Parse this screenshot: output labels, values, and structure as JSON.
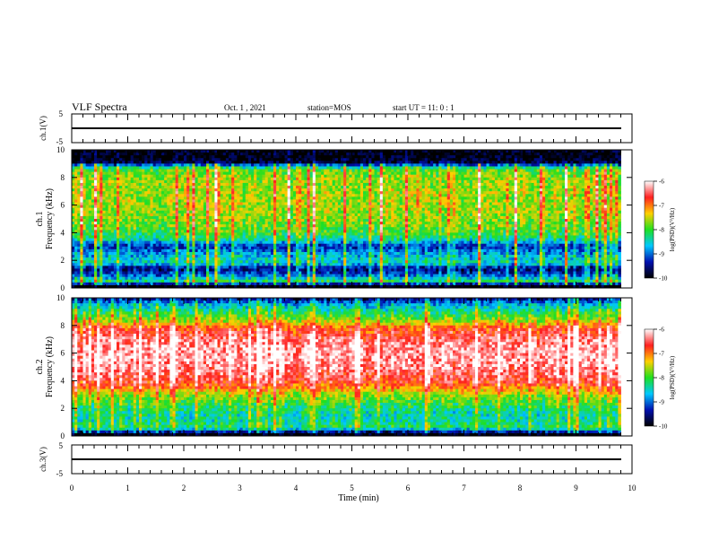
{
  "header": {
    "title": "VLF Spectra",
    "date": "Oct. 1 , 2021",
    "station": "station=MOS",
    "start": "start UT =  11: 0  : 1"
  },
  "colorbar": {
    "label": "log(PSD)(V²/Hz)",
    "ticks": [
      "-6",
      "-7",
      "-8",
      "-9",
      "-10"
    ],
    "stops": [
      "#ffffff",
      "#ff2020",
      "#ffd000",
      "#20e020",
      "#00c8ff",
      "#0010b0",
      "#000000"
    ]
  },
  "chart_data": [
    {
      "type": "line",
      "name": "ch1-waveform",
      "ylabel": "ch.1(V)",
      "xlim": [
        0,
        10
      ],
      "ylim": [
        -5,
        5
      ],
      "yticks": [
        "5",
        "-5"
      ],
      "x": [
        0,
        9.8
      ],
      "y": [
        0,
        0
      ]
    },
    {
      "type": "heatmap",
      "name": "ch1-spectrogram",
      "ylabel": "ch.1\nFrequency (kHz)",
      "ylabel_lines": [
        "ch.1",
        "Frequency (kHz)"
      ],
      "xlim": [
        0,
        10
      ],
      "data_xmax": 9.8,
      "ylim": [
        0,
        10
      ],
      "yticks": [
        "0",
        "2",
        "4",
        "6",
        "8",
        "10"
      ],
      "clim": [
        -10,
        -6
      ],
      "frequency_kHz": [
        0.2,
        0.5,
        0.9,
        1.4,
        1.8,
        2.4,
        3.0,
        3.6,
        4.2,
        5.0,
        6.0,
        7.0,
        8.0,
        8.6,
        9.0,
        9.4,
        9.9
      ],
      "mean_log_psd": [
        -10,
        -8.4,
        -9.2,
        -9.8,
        -8.6,
        -8.9,
        -9.5,
        -8.4,
        -8.1,
        -7.9,
        -7.8,
        -7.8,
        -7.9,
        -8.1,
        -9.7,
        -10,
        -10
      ]
    },
    {
      "type": "heatmap",
      "name": "ch2-spectrogram",
      "ylabel": "ch.2\nFrequency (kHz)",
      "ylabel_lines": [
        "ch.2",
        "Frequency (kHz)"
      ],
      "xlim": [
        0,
        10
      ],
      "data_xmax": 9.8,
      "ylim": [
        0,
        10
      ],
      "yticks": [
        "0",
        "2",
        "4",
        "6",
        "8",
        "10"
      ],
      "clim": [
        -10,
        -6
      ],
      "frequency_kHz": [
        0.2,
        0.6,
        1.2,
        1.8,
        2.4,
        3.0,
        3.5,
        4.0,
        5.0,
        6.0,
        7.0,
        7.8,
        8.4,
        9.0,
        9.5,
        9.9
      ],
      "mean_log_psd": [
        -10,
        -8.3,
        -8.6,
        -8.5,
        -8.2,
        -7.8,
        -7.2,
        -6.8,
        -6.5,
        -6.4,
        -6.6,
        -7.0,
        -7.9,
        -8.4,
        -8.9,
        -9.6
      ]
    },
    {
      "type": "line",
      "name": "ch3-waveform",
      "ylabel": "ch.3(V)",
      "xlim": [
        0,
        10
      ],
      "ylim": [
        -5,
        5
      ],
      "yticks": [
        "5",
        "-5"
      ],
      "x": [
        0,
        9.8
      ],
      "y": [
        0,
        0
      ]
    }
  ],
  "xaxis": {
    "label": "Time (min)",
    "ticks": [
      "0",
      "1",
      "2",
      "3",
      "4",
      "5",
      "6",
      "7",
      "8",
      "9",
      "10"
    ]
  }
}
